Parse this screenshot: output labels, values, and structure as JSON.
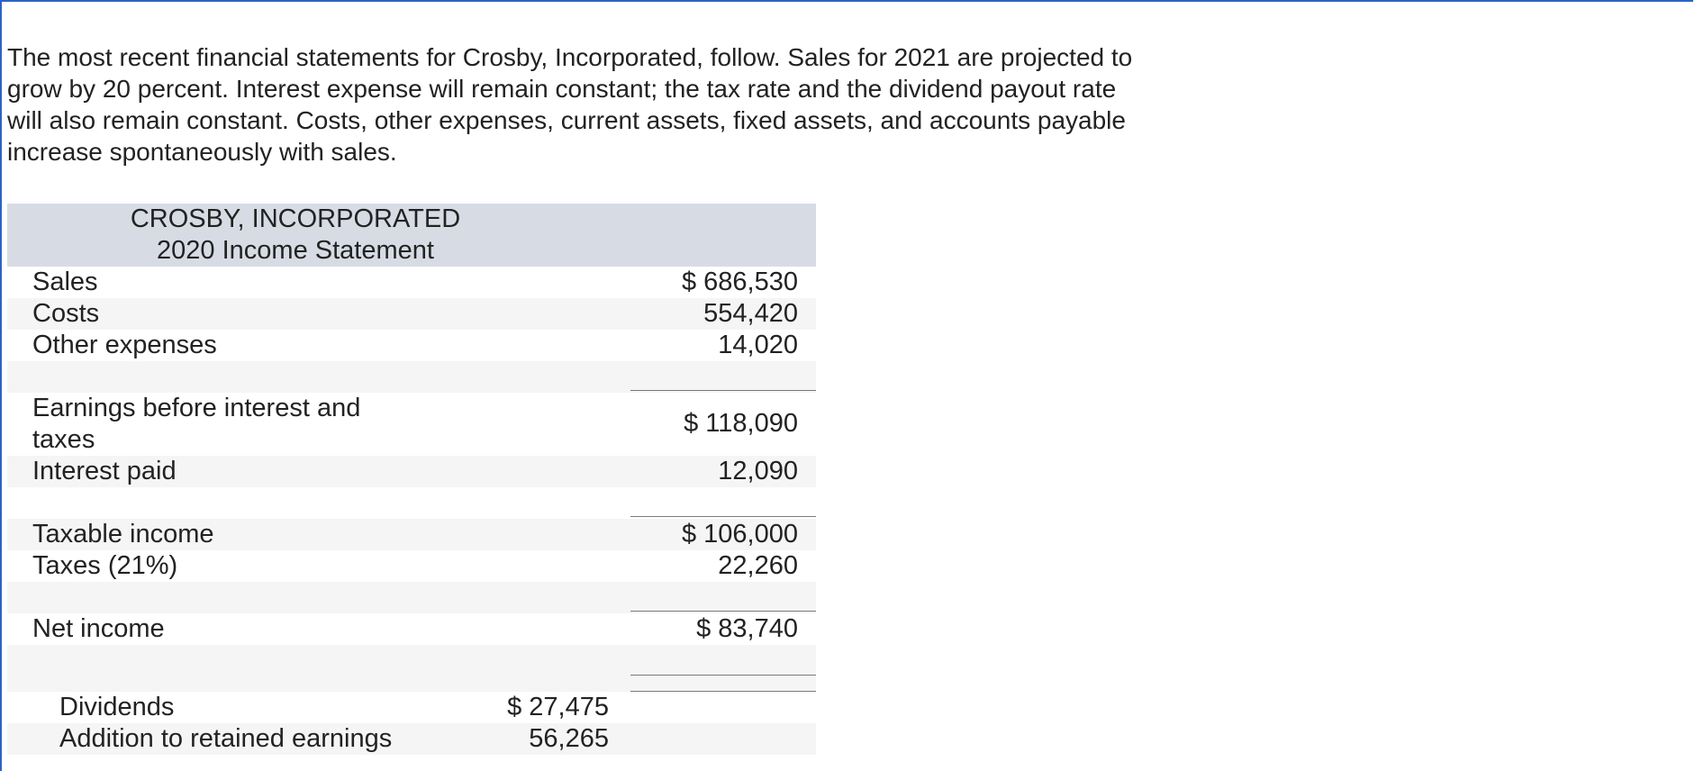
{
  "intro_text": "The most recent financial statements for Crosby, Incorporated, follow. Sales for 2021 are projected to grow by 20 percent. Interest expense will remain constant; the tax rate and the dividend payout rate will also remain constant. Costs, other expenses, current assets, fixed assets, and accounts payable increase spontaneously with sales.",
  "statement": {
    "company": "CROSBY, INCORPORATED",
    "title": "2020 Income Statement",
    "sales": {
      "label": "Sales",
      "value": "$ 686,530"
    },
    "costs": {
      "label": "Costs",
      "value": "554,420"
    },
    "other_expenses": {
      "label": "Other expenses",
      "value": "14,020"
    },
    "ebit": {
      "label": "Earnings before interest and taxes",
      "value": "$ 118,090"
    },
    "interest": {
      "label": "Interest paid",
      "value": "12,090"
    },
    "taxable_income": {
      "label": "Taxable income",
      "value": "$ 106,000"
    },
    "taxes": {
      "label": "Taxes (21%)",
      "value": "22,260"
    },
    "net_income": {
      "label": "Net income",
      "value": "$ 83,740"
    },
    "dividends": {
      "label": "Dividends",
      "value": "$ 27,475"
    },
    "retained": {
      "label": "Addition to retained earnings",
      "value": "56,265"
    }
  }
}
